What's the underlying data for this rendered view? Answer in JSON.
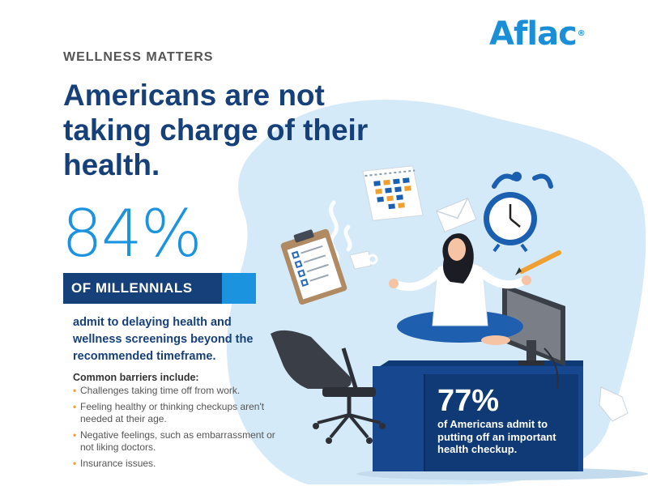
{
  "brand": {
    "logo": "Aflac",
    "registered": "®"
  },
  "kicker": "WELLNESS MATTERS",
  "headline": "Americans are not taking charge of their health.",
  "primary_stat": {
    "value": "84%",
    "label": "OF MILLENNIALS",
    "description": "admit to delaying health and wellness screenings beyond the recommended timeframe."
  },
  "barriers": {
    "title": "Common barriers include:",
    "items": [
      "Challenges taking time off from work.",
      "Feeling healthy or thinking checkups aren't needed at their age.",
      "Negative feelings, such as embarrassment or not liking doctors.",
      "Insurance issues."
    ]
  },
  "secondary_stat": {
    "value": "77%",
    "description": "of Americans admit to putting off an important health checkup."
  },
  "colors": {
    "navy": "#16407a",
    "brand_blue": "#1b93df",
    "light_blue": "#d4eaf8",
    "accent_orange": "#f0a030"
  }
}
